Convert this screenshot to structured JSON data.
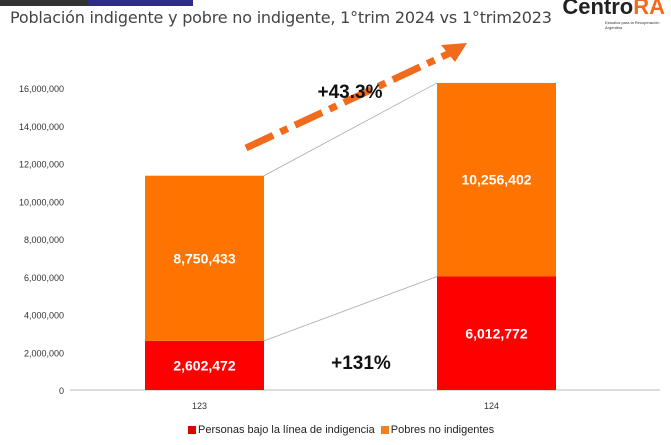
{
  "header": {
    "title": "Población indigente y pobre no indigente, 1°trim 2024 vs 1°trim2023"
  },
  "logo": {
    "text_main": "Centro",
    "text_accent": "RA",
    "subtitle": "Estudios para la Recuperación Argentina"
  },
  "chart_data": {
    "type": "bar",
    "stacked": true,
    "categories": [
      "123",
      "124"
    ],
    "series": [
      {
        "name": "Personas bajo la línea de indigencia",
        "values": [
          2602472,
          6012772
        ],
        "labels": [
          "2,602,472",
          "6,012,772"
        ],
        "color": "#ff0000"
      },
      {
        "name": "Pobres no indigentes",
        "values": [
          8750433,
          10256402
        ],
        "labels": [
          "8,750,433",
          "10,256,402"
        ],
        "color": "#ff7300"
      }
    ],
    "ylim": [
      0,
      16000000
    ],
    "yticks": [
      "0",
      "2,000,000",
      "4,000,000",
      "6,000,000",
      "8,000,000",
      "10,000,000",
      "12,000,000",
      "14,000,000",
      "16,000,000"
    ],
    "grid": false,
    "legend": "bottom",
    "annotations": [
      "+43.3%",
      "+131%"
    ]
  }
}
